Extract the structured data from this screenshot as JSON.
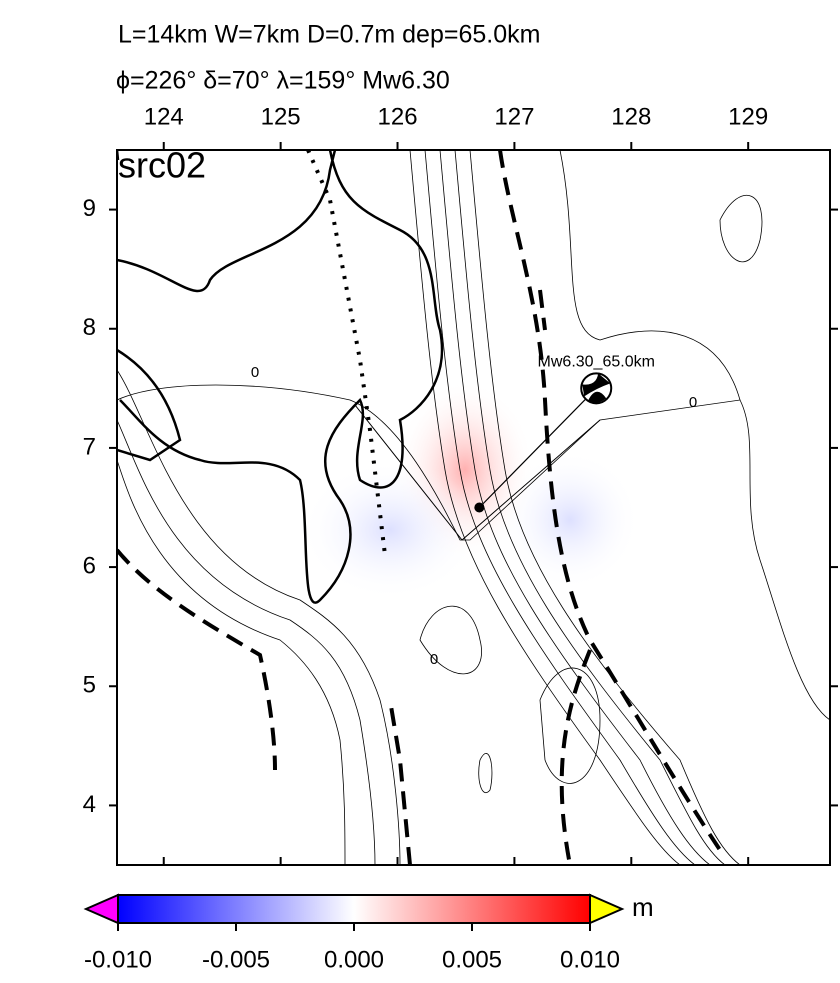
{
  "chart_data": {
    "type": "map",
    "title": "L=14km W=7km D=0.7m dep=65.0km",
    "subtitle": "ϕ=226° δ=70° λ=159° Mw6.30",
    "panel_label": "src02",
    "xlim": [
      123.6,
      129.7
    ],
    "xticks": [
      124,
      125,
      126,
      127,
      128,
      129
    ],
    "ylim": [
      3.5,
      9.5
    ],
    "yticks": [
      4,
      5,
      6,
      7,
      8,
      9
    ],
    "epicenter": {
      "x": 126.7,
      "y": 6.5
    },
    "mechanism": {
      "label": "Mw6.30_65.0km",
      "x": 127.7,
      "y": 7.5
    },
    "contour_labels": [
      "0",
      "0",
      "0"
    ],
    "colorbar": {
      "label": "m",
      "lim": [
        -0.01,
        0.01
      ],
      "ticks": [
        {
          "value": -0.01,
          "label": "-0.010"
        },
        {
          "value": -0.005,
          "label": "-0.005"
        },
        {
          "value": 0,
          "label": "0.000"
        },
        {
          "value": 0.005,
          "label": "0.005"
        },
        {
          "value": 0.01,
          "label": "0.010"
        }
      ],
      "colors": [
        "#0000ff",
        "#ffffff",
        "#ff0000"
      ],
      "low_color": "#ff00ff",
      "high_color": "#ffff00"
    }
  }
}
